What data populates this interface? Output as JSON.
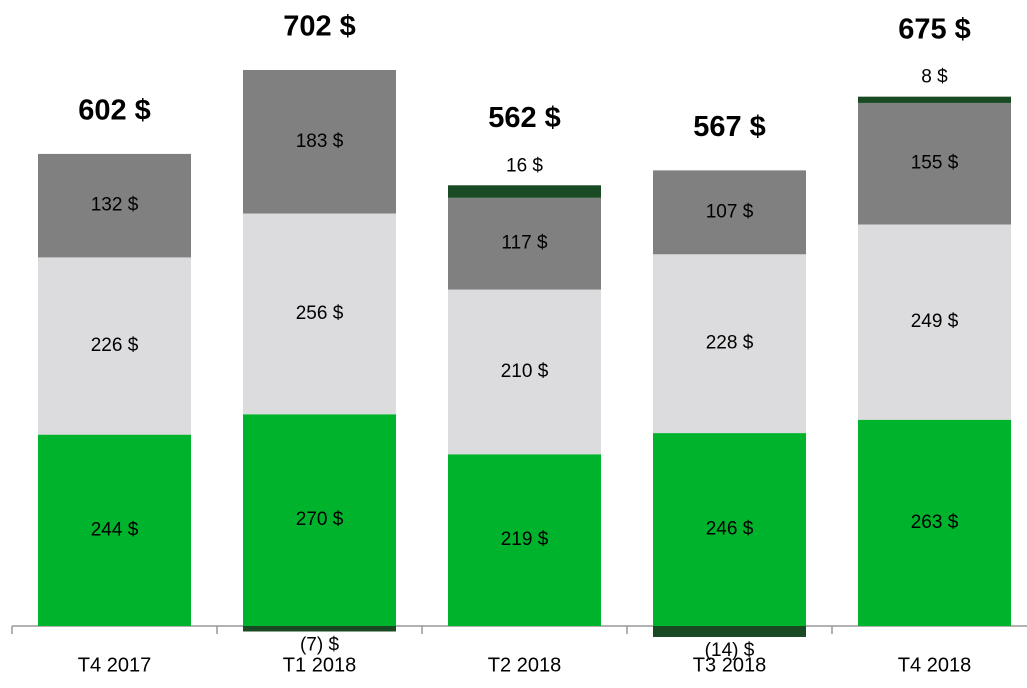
{
  "chart_data": {
    "type": "stacked_bar",
    "categories": [
      "T4 2017",
      "T1 2018",
      "T2 2018",
      "T3 2018",
      "T4 2018"
    ],
    "series": [
      {
        "color": "#00b32c",
        "values": [
          244,
          270,
          219,
          246,
          263
        ],
        "value_labels": [
          "244 $",
          "270 $",
          "219 $",
          "246 $",
          "263 $"
        ]
      },
      {
        "color": "#dcdcde",
        "values": [
          226,
          256,
          210,
          228,
          249
        ],
        "value_labels": [
          "226 $",
          "256 $",
          "210 $",
          "228 $",
          "249 $"
        ]
      },
      {
        "color": "#808080",
        "values": [
          132,
          183,
          117,
          107,
          155
        ],
        "value_labels": [
          "132 $",
          "183 $",
          "117 $",
          "107 $",
          "155 $"
        ]
      },
      {
        "color": "#1a4a23",
        "values": [
          null,
          -7,
          16,
          -14,
          8
        ],
        "value_labels": [
          null,
          "(7) $",
          "16 $",
          "(14) $",
          "8 $"
        ]
      }
    ],
    "totals": [
      602,
      702,
      562,
      567,
      675
    ],
    "total_labels": [
      "602 $",
      "702 $",
      "562 $",
      "567 $",
      "675 $"
    ]
  }
}
